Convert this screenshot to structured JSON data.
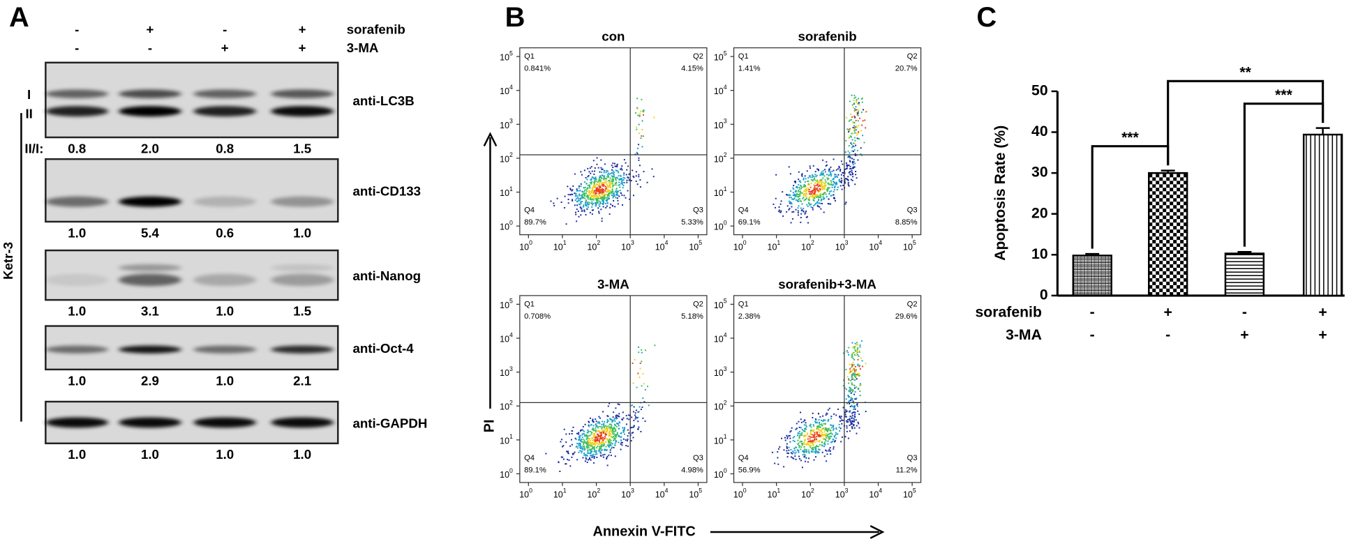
{
  "panel_a": {
    "label": "A",
    "treatments": [
      {
        "name": "sorafenib",
        "signs": [
          "-",
          "+",
          "-",
          "+"
        ]
      },
      {
        "name": "3-MA",
        "signs": [
          "-",
          "-",
          "+",
          "+"
        ]
      }
    ],
    "cell_line": "Ketr-3",
    "band_labels": [
      "I",
      "II"
    ],
    "ratio_label": "II/I:",
    "blots": [
      {
        "antibody": "anti-LC3B",
        "ratios": [
          "0.8",
          "2.0",
          "0.8",
          "1.5"
        ]
      },
      {
        "antibody": "anti-CD133",
        "ratios": [
          "1.0",
          "5.4",
          "0.6",
          "1.0"
        ]
      },
      {
        "antibody": "anti-Nanog",
        "ratios": [
          "1.0",
          "3.1",
          "1.0",
          "1.5"
        ]
      },
      {
        "antibody": "anti-Oct-4",
        "ratios": [
          "1.0",
          "2.9",
          "1.0",
          "2.1"
        ]
      },
      {
        "antibody": "anti-GAPDH",
        "ratios": [
          "1.0",
          "1.0",
          "1.0",
          "1.0"
        ]
      }
    ]
  },
  "panel_b": {
    "label": "B",
    "y_axis_label": "PI",
    "x_axis_label": "Annexin V-FITC",
    "tick_base": "10",
    "tick_exponents": [
      0,
      1,
      2,
      3,
      4,
      5
    ],
    "plots": [
      {
        "title": "con",
        "quadrants": [
          {
            "name": "Q1",
            "percent": "0.841%"
          },
          {
            "name": "Q2",
            "percent": "4.15%"
          },
          {
            "name": "Q3",
            "percent": "5.33%"
          },
          {
            "name": "Q4",
            "percent": "89.7%"
          }
        ]
      },
      {
        "title": "sorafenib",
        "quadrants": [
          {
            "name": "Q1",
            "percent": "1.41%"
          },
          {
            "name": "Q2",
            "percent": "20.7%"
          },
          {
            "name": "Q3",
            "percent": "8.85%"
          },
          {
            "name": "Q4",
            "percent": "69.1%"
          }
        ]
      },
      {
        "title": "3-MA",
        "quadrants": [
          {
            "name": "Q1",
            "percent": "0.708%"
          },
          {
            "name": "Q2",
            "percent": "5.18%"
          },
          {
            "name": "Q3",
            "percent": "4.98%"
          },
          {
            "name": "Q4",
            "percent": "89.1%"
          }
        ]
      },
      {
        "title": "sorafenib+3-MA",
        "quadrants": [
          {
            "name": "Q1",
            "percent": "2.38%"
          },
          {
            "name": "Q2",
            "percent": "29.6%"
          },
          {
            "name": "Q3",
            "percent": "11.2%"
          },
          {
            "name": "Q4",
            "percent": "56.9%"
          }
        ]
      }
    ]
  },
  "chart_data": {
    "type": "bar",
    "panel_label": "C",
    "y_label": "Apoptosis Rate (%)",
    "values": [
      9.8,
      30.0,
      10.3,
      39.4
    ],
    "errors": [
      0.4,
      0.6,
      0.4,
      1.6
    ],
    "patterns": [
      "crosshatch",
      "checker",
      "hstripe",
      "vstripe"
    ],
    "ylim": [
      0,
      50
    ],
    "yticks": [
      0,
      10,
      20,
      30,
      40,
      50
    ],
    "treatments": [
      {
        "name": "sorafenib",
        "signs": [
          "-",
          "+",
          "-",
          "+"
        ]
      },
      {
        "name": "3-MA",
        "signs": [
          "-",
          "-",
          "+",
          "+"
        ]
      }
    ],
    "significance": [
      {
        "pair": [
          0,
          1
        ],
        "label": "***"
      },
      {
        "pair": [
          1,
          3
        ],
        "label": "**"
      },
      {
        "pair": [
          2,
          3
        ],
        "label": "***"
      }
    ]
  }
}
